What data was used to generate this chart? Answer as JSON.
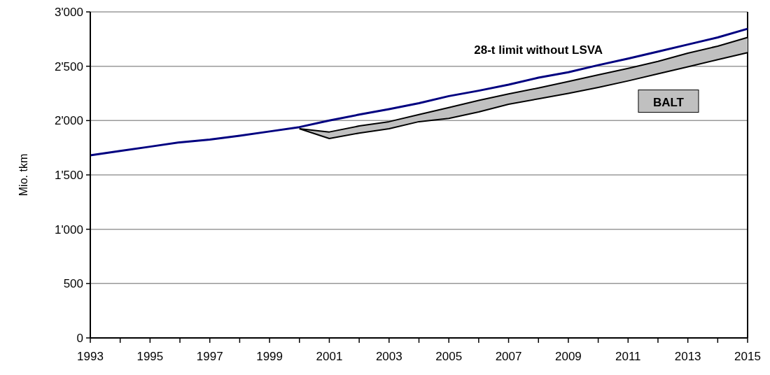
{
  "chart_data": {
    "type": "line",
    "ylabel": "Mio. tkm",
    "xlim": [
      1993,
      2015
    ],
    "xticks": [
      1993,
      {
        "value": 1994,
        "label": null
      },
      1995,
      {
        "value": 1996,
        "label": null
      },
      1997,
      {
        "value": 1998,
        "label": null
      },
      1999,
      {
        "value": 2000,
        "label": null
      },
      2001,
      {
        "value": 2002,
        "label": null
      },
      2003,
      {
        "value": 2004,
        "label": null
      },
      2005,
      {
        "value": 2006,
        "label": null
      },
      2007,
      {
        "value": 2008,
        "label": null
      },
      2009,
      {
        "value": 2010,
        "label": null
      },
      2011,
      {
        "value": 2012,
        "label": null
      },
      2013,
      {
        "value": 2014,
        "label": null
      },
      2015
    ],
    "ylim": [
      0,
      3000
    ],
    "yticks": [
      {
        "value": 0,
        "label": "0"
      },
      {
        "value": 500,
        "label": "500"
      },
      {
        "value": 1000,
        "label": "1'000"
      },
      {
        "value": 1500,
        "label": "1'500"
      },
      {
        "value": 2000,
        "label": "2'000"
      },
      {
        "value": 2500,
        "label": "2'500"
      },
      {
        "value": 3000,
        "label": "3'000"
      }
    ],
    "grid": "y",
    "marker": "none",
    "line_style": "solid",
    "series": [
      {
        "name": "28-t limit without LSVA",
        "color": "#000080",
        "x": [
          1993,
          1994,
          1995,
          1996,
          1997,
          1998,
          1999,
          2000,
          2001,
          2002,
          2003,
          2004,
          2005,
          2006,
          2007,
          2008,
          2009,
          2010,
          2011,
          2012,
          2013,
          2014,
          2015
        ],
        "values": [
          1680,
          1720,
          1760,
          1800,
          1825,
          1860,
          1900,
          1940,
          2000,
          2055,
          2105,
          2160,
          2225,
          2275,
          2330,
          2395,
          2445,
          2510,
          2570,
          2635,
          2700,
          2765,
          2845
        ]
      },
      {
        "name": "BALT",
        "color": "#000000",
        "x": [
          2000,
          2001,
          2002,
          2003,
          2004,
          2005,
          2006,
          2007,
          2008,
          2009,
          2010,
          2011,
          2012,
          2013,
          2014,
          2015
        ],
        "values": [
          1925,
          1895,
          1950,
          1990,
          2055,
          2120,
          2185,
          2245,
          2300,
          2360,
          2420,
          2480,
          2545,
          2620,
          2685,
          2765
        ],
        "lower": [
          1925,
          1835,
          1885,
          1925,
          1990,
          2020,
          2080,
          2150,
          2200,
          2250,
          2305,
          2365,
          2430,
          2495,
          2560,
          2625
        ],
        "upper": [
          1925,
          1895,
          1950,
          1990,
          2055,
          2120,
          2185,
          2245,
          2300,
          2360,
          2420,
          2480,
          2545,
          2620,
          2685,
          2765
        ]
      },
      {
        "color": "#000000",
        "x": [
          2000,
          2001,
          2002,
          2003,
          2004,
          2005,
          2006,
          2007,
          2008,
          2009,
          2010,
          2011,
          2012,
          2013,
          2014,
          2015
        ],
        "values": [
          1925,
          1835,
          1885,
          1925,
          1990,
          2020,
          2080,
          2150,
          2200,
          2250,
          2305,
          2365,
          2430,
          2495,
          2560,
          2625
        ]
      }
    ]
  }
}
